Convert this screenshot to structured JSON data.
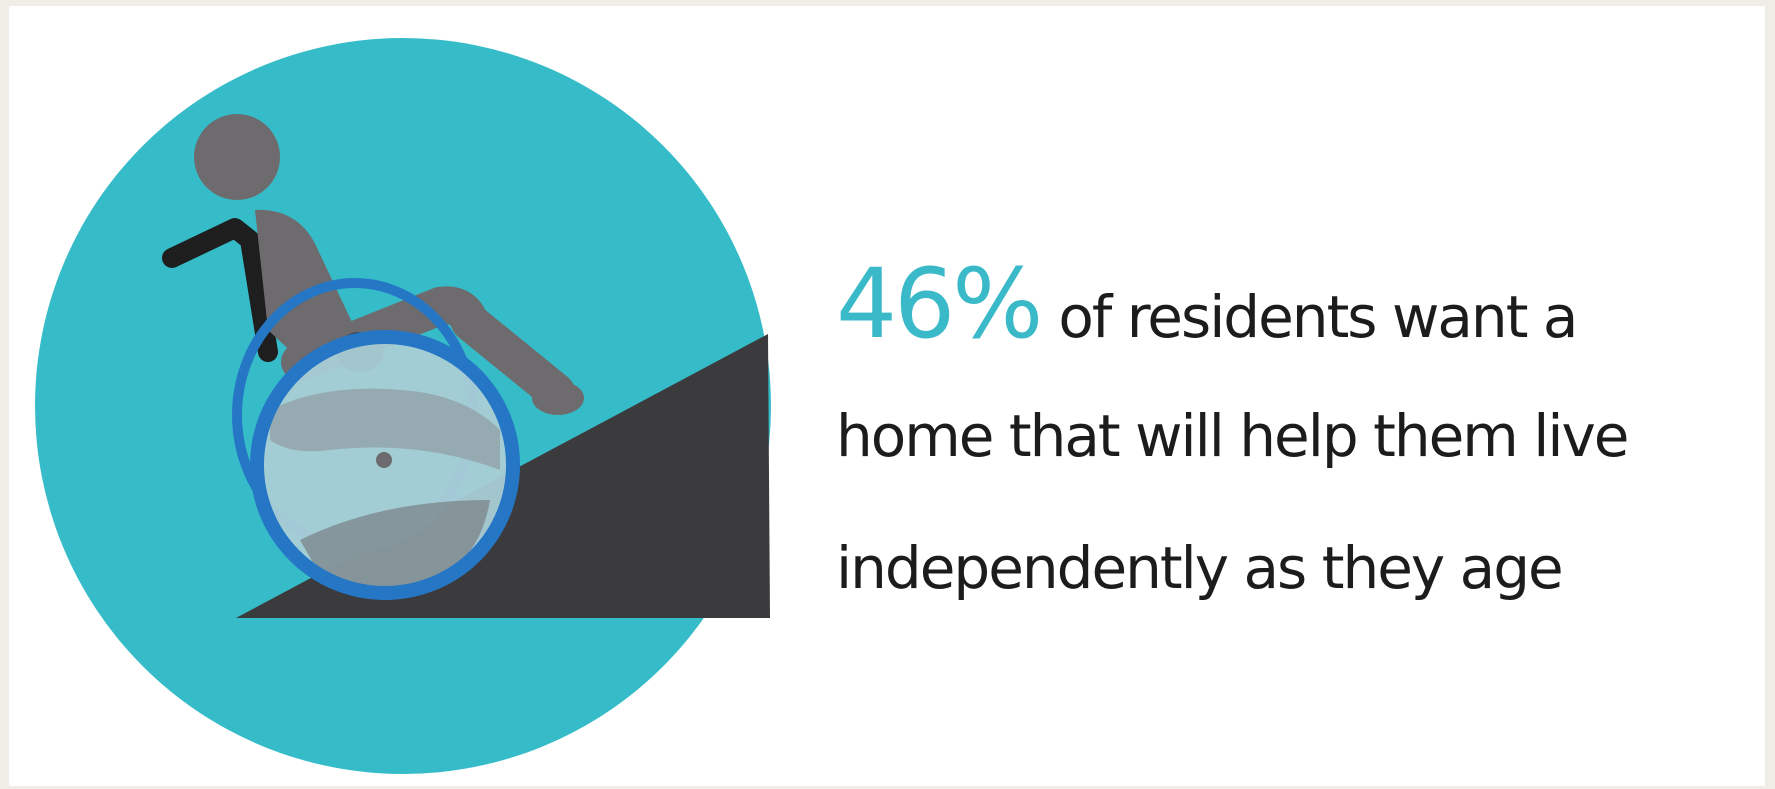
{
  "infographic": {
    "stat_value": "46%",
    "line1": "of residents want a",
    "line2": "home that will help them live",
    "line3": "independently as they age",
    "icon": "wheelchair-ramp-icon",
    "colors": {
      "accent": "#3ab9c9",
      "circle": "#35bcc8",
      "ramp": "#3b3a3c",
      "figure": "#6e6b6e",
      "wheel_rim": "#2576c5",
      "wheel_fill": "#a9cdd6",
      "text": "#1c1c1c"
    }
  }
}
